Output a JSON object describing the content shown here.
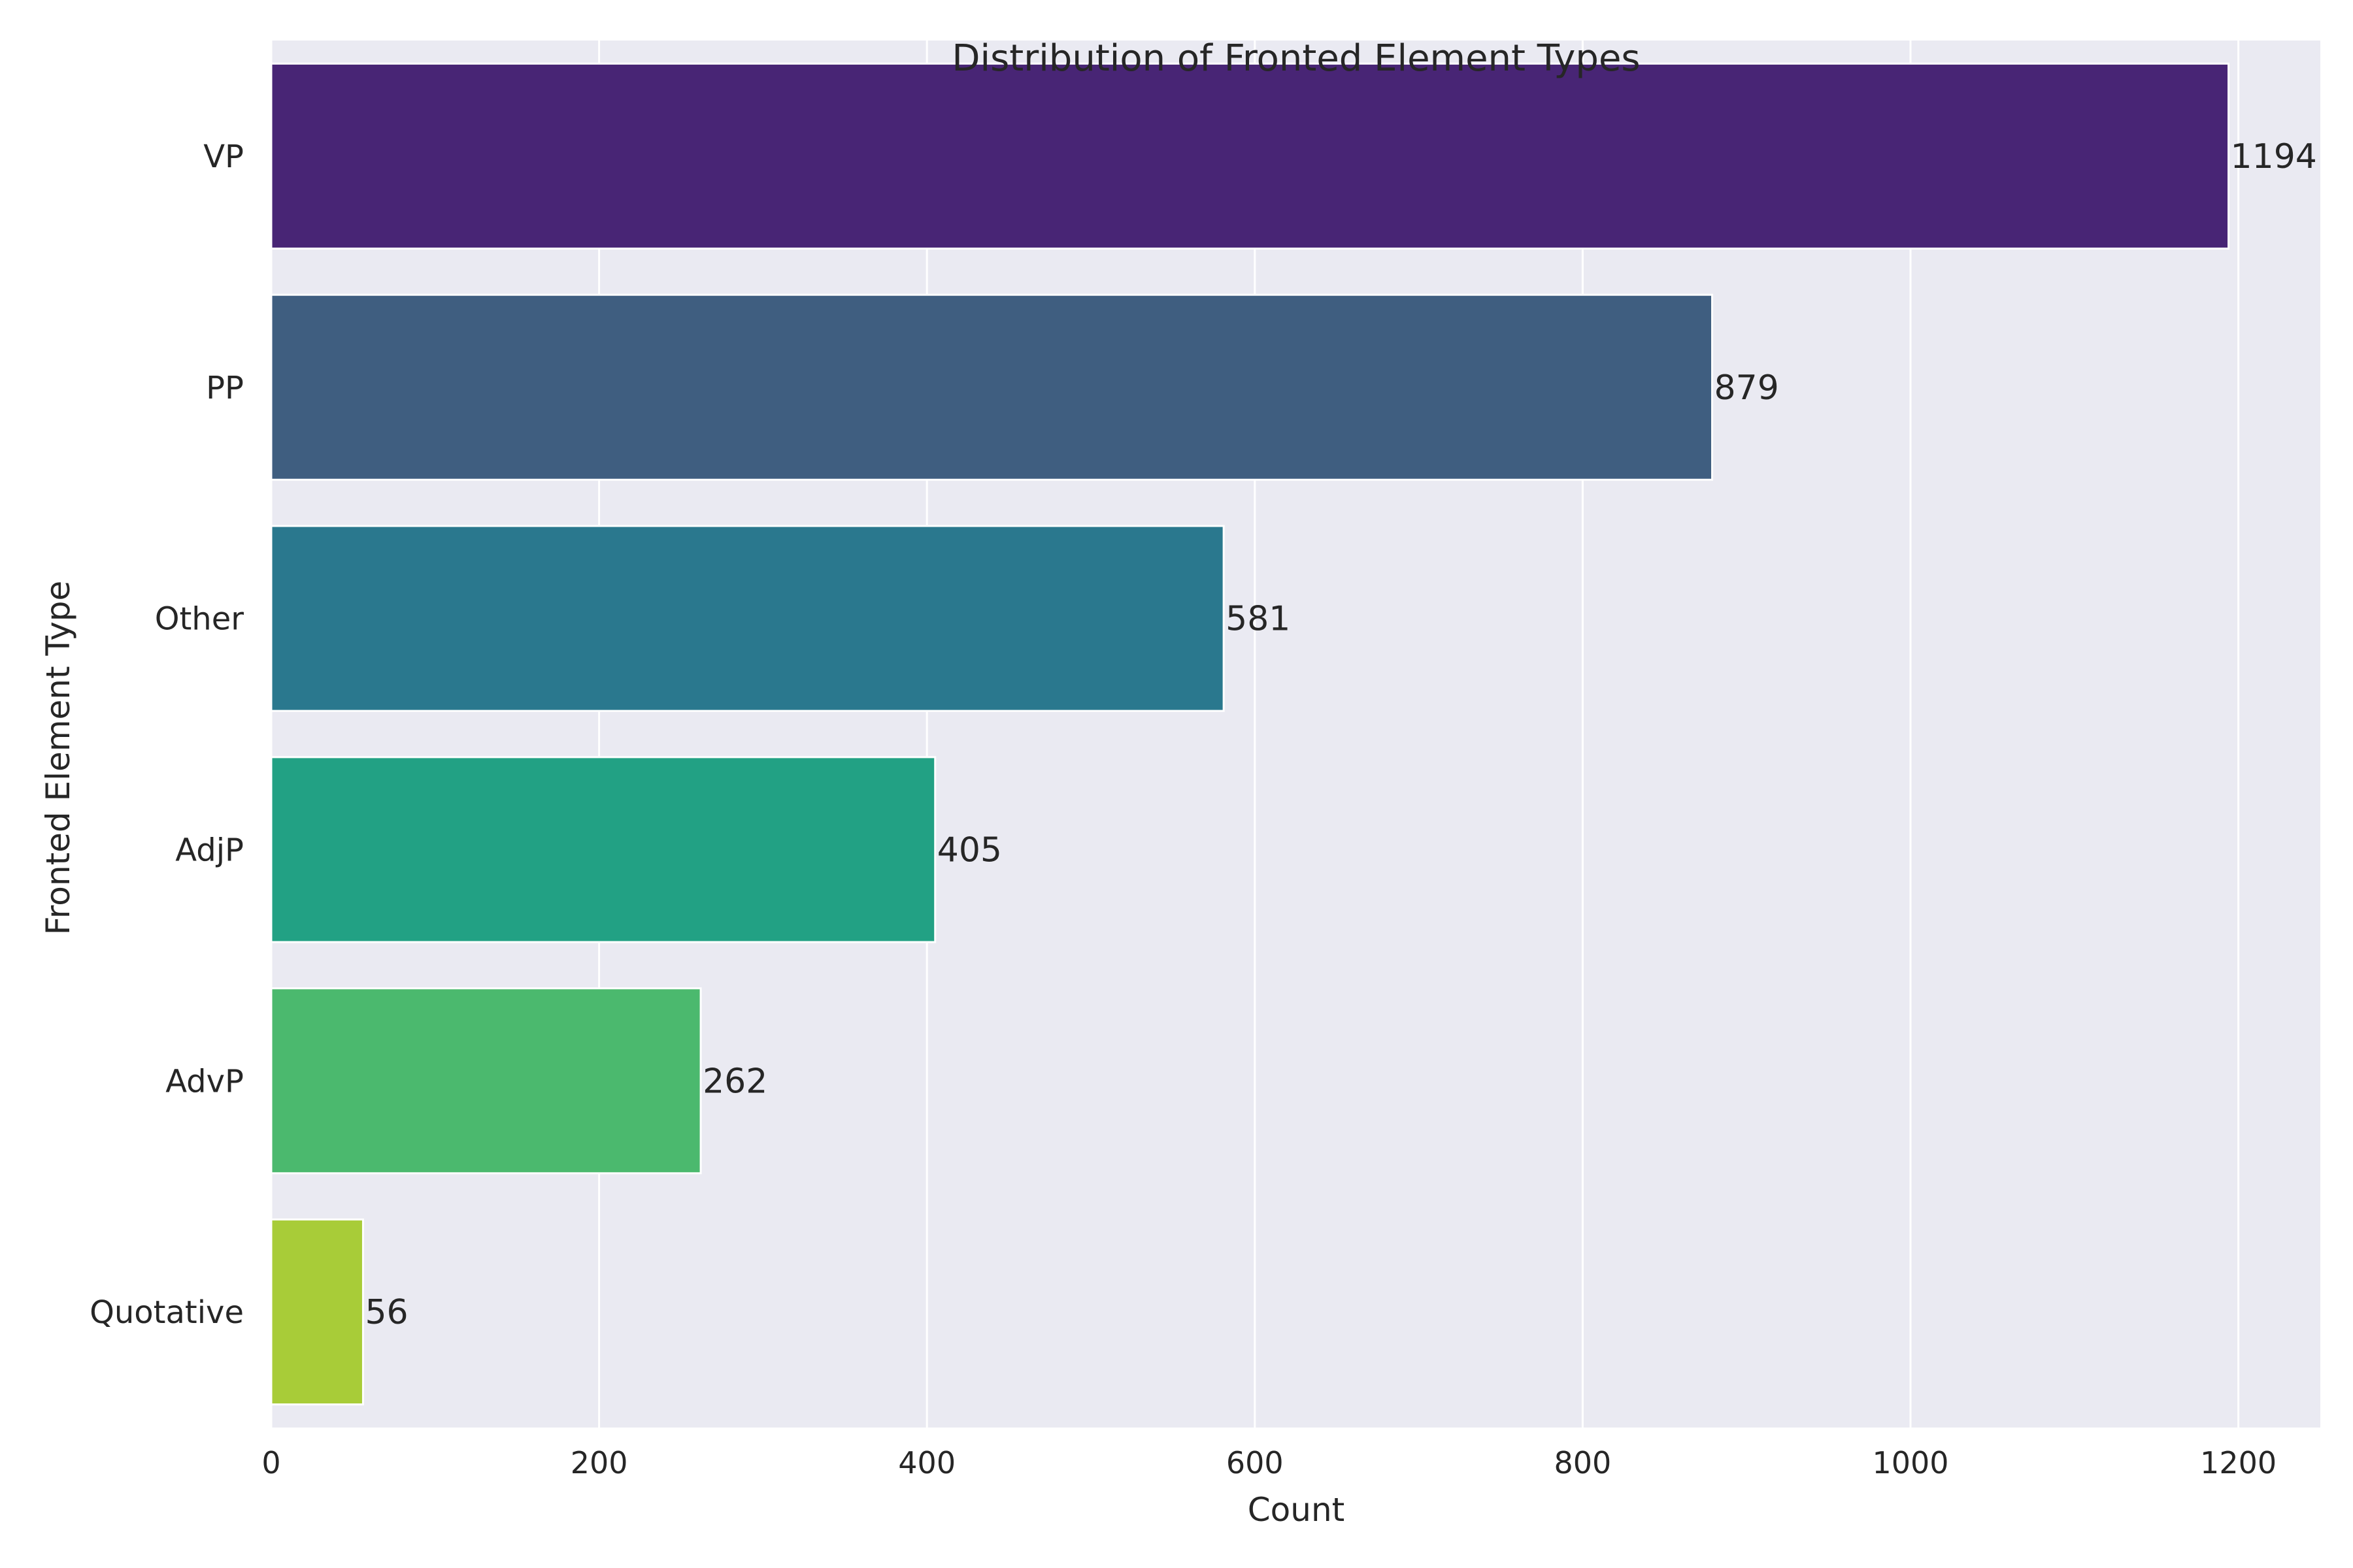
{
  "chart_data": {
    "type": "bar",
    "orientation": "horizontal",
    "title": "Distribution of Fronted Element Types",
    "xlabel": "Count",
    "ylabel": "Fronted Element Type",
    "categories": [
      "VP",
      "PP",
      "Other",
      "AdjP",
      "AdvP",
      "Quotative"
    ],
    "values": [
      1194,
      879,
      581,
      405,
      262,
      56
    ],
    "data_labels": [
      "1194",
      "879",
      "581",
      "405",
      "262",
      "56"
    ],
    "colors": [
      "#482575",
      "#3f5e80",
      "#2a788e",
      "#22a184",
      "#4bb96e",
      "#a8cc38"
    ],
    "xlim": [
      0,
      1250
    ],
    "xticks": [
      0,
      200,
      400,
      600,
      800,
      1000,
      1200
    ],
    "xtick_labels": [
      "0",
      "200",
      "400",
      "600",
      "800",
      "1000",
      "1200"
    ],
    "grid": true,
    "plot_background": "#eaeaf2",
    "grid_color": "#ffffff",
    "legend": "none"
  }
}
